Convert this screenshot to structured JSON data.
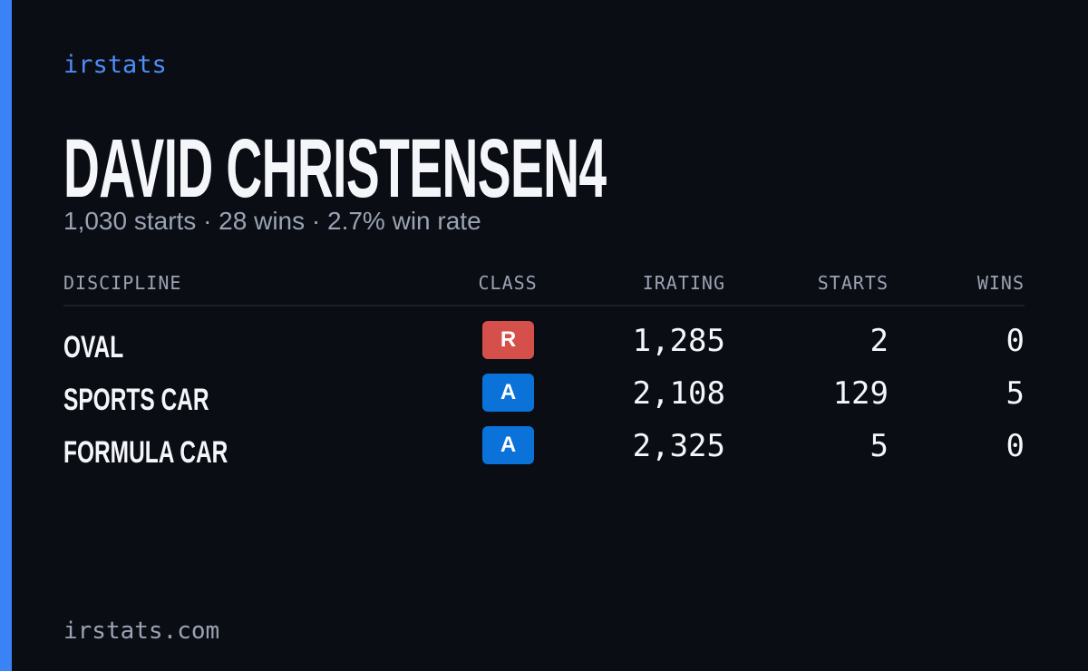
{
  "brand": "irstats",
  "title": "DAVID CHRISTENSEN4",
  "subtitle": "1,030 starts · 28 wins · 2.7% win rate",
  "table": {
    "columns": [
      "DISCIPLINE",
      "CLASS",
      "IRATING",
      "STARTS",
      "WINS"
    ],
    "rows": [
      [
        "OVAL",
        "R",
        "1,285",
        "2",
        "0"
      ],
      [
        "SPORTS CAR",
        "A",
        "2,108",
        "129",
        "5"
      ],
      [
        "FORMULA CAR",
        "A",
        "2,325",
        "5",
        "0"
      ]
    ],
    "class_colors": {
      "R": "#d6504b",
      "A": "#0a72d8"
    }
  },
  "footer": "irstats.com"
}
